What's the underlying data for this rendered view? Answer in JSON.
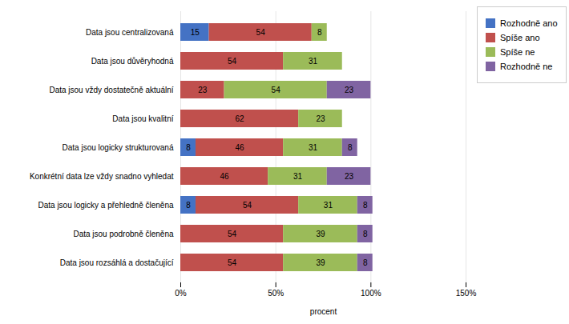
{
  "chart_data": {
    "type": "bar",
    "orientation": "horizontal",
    "stacked": true,
    "categories": [
      "Data jsou centralizovaná",
      "Data jsou důvěryhodná",
      "Data jsou vždy dostatečně aktuální",
      "Data jsou kvalitní",
      "Data jsou logicky strukturovaná",
      "Konkrétní data lze vždy snadno vyhledat",
      "Data jsou logicky a přehledně členěna",
      "Data jsou podrobně členěna",
      "Data jsou rozsáhlá a dostačující"
    ],
    "series": [
      {
        "name": "Rozhodně ano",
        "color": "#4472C4",
        "values": [
          15,
          0,
          0,
          0,
          8,
          0,
          8,
          0,
          0
        ]
      },
      {
        "name": "Spíše ano",
        "color": "#C0504D",
        "values": [
          54,
          54,
          23,
          62,
          46,
          46,
          54,
          54,
          54
        ]
      },
      {
        "name": "Spíše ne",
        "color": "#9BBB59",
        "values": [
          8,
          31,
          54,
          23,
          31,
          31,
          31,
          39,
          39
        ]
      },
      {
        "name": "Rozhodně ne",
        "color": "#8064A2",
        "values": [
          0,
          0,
          23,
          0,
          8,
          23,
          8,
          8,
          8
        ]
      }
    ],
    "xlabel": "procent",
    "xlim": [
      0,
      150
    ],
    "xticks": [
      {
        "value": 0,
        "label": "0%"
      },
      {
        "value": 50,
        "label": "50%"
      },
      {
        "value": 100,
        "label": "100%"
      },
      {
        "value": 150,
        "label": "150%"
      }
    ],
    "grid": true,
    "data_labels": true,
    "legend": "right"
  }
}
